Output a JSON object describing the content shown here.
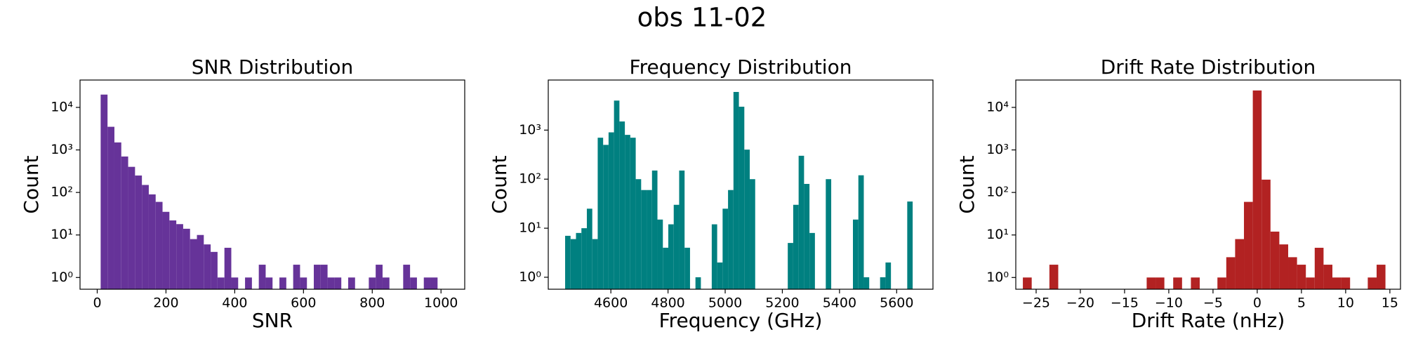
{
  "title": "obs 11-02",
  "chart_data": [
    {
      "type": "histogram",
      "title": "SNR Distribution",
      "xlabel": "SNR",
      "ylabel": "Count",
      "color": "#663399",
      "log_y": true,
      "bins": [
        10,
        30,
        50,
        70,
        90,
        110,
        130,
        150,
        170,
        190,
        210,
        230,
        250,
        270,
        290,
        310,
        330,
        350,
        370,
        390,
        410,
        430,
        450,
        470,
        490,
        510,
        530,
        550,
        570,
        590,
        610,
        630,
        650,
        670,
        690,
        710,
        730,
        750,
        770,
        790,
        810,
        830,
        850,
        870,
        890,
        910,
        930,
        950,
        970,
        990
      ],
      "values": [
        20000,
        3500,
        1500,
        700,
        400,
        250,
        150,
        90,
        60,
        35,
        22,
        18,
        14,
        8,
        10,
        6,
        4,
        1,
        5,
        1,
        0,
        1,
        0,
        2,
        1,
        0,
        1,
        0,
        2,
        1,
        0,
        2,
        2,
        1,
        1,
        0,
        1,
        0,
        0,
        1,
        2,
        1,
        0,
        0,
        2,
        1,
        0,
        1,
        1
      ],
      "xlim": [
        -50,
        1069
      ],
      "xticks": [
        0,
        200,
        400,
        600,
        800,
        1000
      ],
      "ylim": [
        0.53,
        44000
      ],
      "yticks": [
        {
          "value": 1,
          "label": "10⁰"
        },
        {
          "value": 10,
          "label": "10¹"
        },
        {
          "value": 100,
          "label": "10²"
        },
        {
          "value": 1000,
          "label": "10³"
        },
        {
          "value": 10000,
          "label": "10⁴"
        }
      ]
    },
    {
      "type": "histogram",
      "title": "Frequency Distribution",
      "xlabel": "Frequency (GHz)",
      "ylabel": "Count",
      "color": "#008080",
      "log_y": true,
      "bins": [
        4440,
        4459,
        4478,
        4497,
        4516,
        4535,
        4554,
        4573,
        4592,
        4611,
        4630,
        4649,
        4668,
        4687,
        4706,
        4725,
        4744,
        4763,
        4782,
        4801,
        4820,
        4839,
        4858,
        4877,
        4896,
        4915,
        4934,
        4953,
        4972,
        4991,
        5010,
        5029,
        5048,
        5067,
        5086,
        5105,
        5124,
        5143,
        5162,
        5181,
        5200,
        5219,
        5238,
        5257,
        5276,
        5295,
        5314,
        5333,
        5352,
        5371,
        5390,
        5409,
        5428,
        5447,
        5466,
        5485,
        5504,
        5523,
        5542,
        5561,
        5580,
        5599,
        5618,
        5637,
        5656
      ],
      "values": [
        7,
        6,
        8,
        10,
        25,
        6,
        700,
        500,
        900,
        4000,
        1500,
        800,
        700,
        100,
        60,
        60,
        150,
        15,
        4,
        12,
        30,
        150,
        4,
        0,
        1,
        0,
        0,
        12,
        2,
        25,
        60,
        6000,
        3000,
        400,
        100,
        0,
        0,
        0,
        0,
        0,
        0,
        5,
        30,
        300,
        80,
        8,
        0,
        0,
        100,
        0,
        0,
        0,
        0,
        15,
        120,
        1,
        0,
        0,
        1,
        2,
        0,
        0,
        0,
        35
      ],
      "xlim": [
        4381,
        5727
      ],
      "xticks": [
        4600,
        4800,
        5000,
        5200,
        5400,
        5600
      ],
      "ylim": [
        0.57,
        10500
      ],
      "yticks": [
        {
          "value": 1,
          "label": "10⁰"
        },
        {
          "value": 10,
          "label": "10¹"
        },
        {
          "value": 100,
          "label": "10²"
        },
        {
          "value": 1000,
          "label": "10³"
        }
      ]
    },
    {
      "type": "histogram",
      "title": "Drift Rate Distribution",
      "xlabel": "Drift Rate (nHz)",
      "ylabel": "Count",
      "color": "#b22222",
      "log_y": true,
      "bins": [
        -26.5,
        -25.5,
        -24.5,
        -23.5,
        -22.5,
        -21.5,
        -20.5,
        -19.5,
        -18.5,
        -17.5,
        -16.5,
        -15.5,
        -14.5,
        -13.5,
        -12.5,
        -11.5,
        -10.5,
        -9.5,
        -8.5,
        -7.5,
        -6.5,
        -5.5,
        -4.5,
        -3.5,
        -2.5,
        -1.5,
        -0.5,
        0.5,
        1.5,
        2.5,
        3.5,
        4.5,
        5.5,
        6.5,
        7.5,
        8.5,
        9.5,
        10.5,
        11.5,
        12.5,
        13.5,
        14.5
      ],
      "values": [
        1,
        0,
        0,
        2,
        0,
        0,
        0,
        0,
        0,
        0,
        0,
        0,
        0,
        0,
        1,
        1,
        0,
        1,
        0,
        1,
        0,
        0,
        1,
        3,
        8,
        60,
        25000,
        200,
        12,
        6,
        3,
        2,
        1,
        5,
        2,
        1,
        1,
        0,
        0,
        1,
        2
      ],
      "xlim": [
        -27.3,
        16.2
      ],
      "xticks": [
        {
          "value": -25,
          "label": "−25"
        },
        {
          "value": -20,
          "label": "−20"
        },
        {
          "value": -15,
          "label": "−15"
        },
        {
          "value": -10,
          "label": "−10"
        },
        {
          "value": -5,
          "label": "−5"
        },
        0,
        5,
        10,
        15
      ],
      "ylim": [
        0.53,
        44000
      ],
      "yticks": [
        {
          "value": 1,
          "label": "10⁰"
        },
        {
          "value": 10,
          "label": "10¹"
        },
        {
          "value": 100,
          "label": "10²"
        },
        {
          "value": 1000,
          "label": "10³"
        },
        {
          "value": 10000,
          "label": "10⁴"
        }
      ]
    }
  ]
}
